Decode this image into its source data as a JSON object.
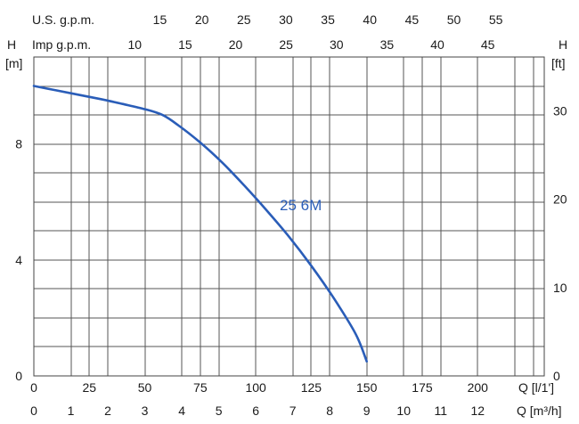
{
  "chart_data": {
    "type": "line",
    "left_axis": {
      "label_top": "H",
      "unit": "[m]",
      "ticks": [
        "0",
        "4",
        "8"
      ],
      "range": [
        0,
        11
      ]
    },
    "right_axis": {
      "label_top": "H",
      "unit": "[ft]",
      "ticks": [
        "0",
        "10",
        "20",
        "30"
      ]
    },
    "bottom_axis_lps": {
      "label": "Q [l/1']",
      "ticks": [
        "0",
        "25",
        "50",
        "75",
        "100",
        "125",
        "150",
        "175",
        "200"
      ],
      "range": [
        0,
        230
      ]
    },
    "bottom_axis_m3h": {
      "label": "Q [m³/h]",
      "ticks": [
        "0",
        "1",
        "2",
        "3",
        "4",
        "5",
        "6",
        "7",
        "8",
        "9",
        "10",
        "11",
        "12"
      ]
    },
    "top_axis_us": {
      "label": "U.S. g.p.m.",
      "ticks": [
        "15",
        "20",
        "25",
        "30",
        "35",
        "40",
        "45",
        "50",
        "55"
      ]
    },
    "top_axis_imp": {
      "label": "Imp g.p.m.",
      "ticks": [
        "10",
        "15",
        "20",
        "25",
        "30",
        "35",
        "40",
        "45"
      ]
    },
    "series": [
      {
        "name": "25 6M",
        "color": "#2a5db8",
        "x": [
          0,
          10,
          20,
          30,
          40,
          50,
          58,
          65,
          75,
          85,
          95,
          105,
          115,
          125,
          135,
          145,
          150
        ],
        "y": [
          10.0,
          9.85,
          9.7,
          9.55,
          9.38,
          9.2,
          9.0,
          8.65,
          8.05,
          7.35,
          6.55,
          5.7,
          4.8,
          3.8,
          2.7,
          1.45,
          0.5
        ]
      }
    ]
  }
}
